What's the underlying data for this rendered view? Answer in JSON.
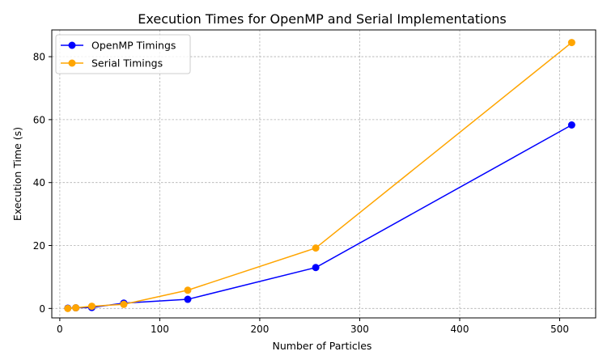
{
  "chart_data": {
    "type": "line",
    "title": "Execution Times for OpenMP and Serial Implementations",
    "xlabel": "Number of Particles",
    "ylabel": "Execution Time (s)",
    "xlim": [
      -8,
      536
    ],
    "ylim": [
      -3,
      88.5
    ],
    "xticks": [
      0,
      100,
      200,
      300,
      400,
      500
    ],
    "yticks": [
      0,
      20,
      40,
      60,
      80
    ],
    "grid": true,
    "legend_position": "top-left",
    "series": [
      {
        "name": "OpenMP Timings",
        "color": "#0000ff",
        "x": [
          8,
          16,
          32,
          64,
          128,
          256,
          512
        ],
        "y": [
          0.1,
          0.2,
          0.3,
          1.7,
          2.9,
          13.0,
          58.3
        ]
      },
      {
        "name": "Serial Timings",
        "color": "#ffa500",
        "x": [
          8,
          16,
          32,
          64,
          128,
          256,
          512
        ],
        "y": [
          0.0,
          0.2,
          0.7,
          1.3,
          5.8,
          19.2,
          84.5
        ]
      }
    ]
  }
}
